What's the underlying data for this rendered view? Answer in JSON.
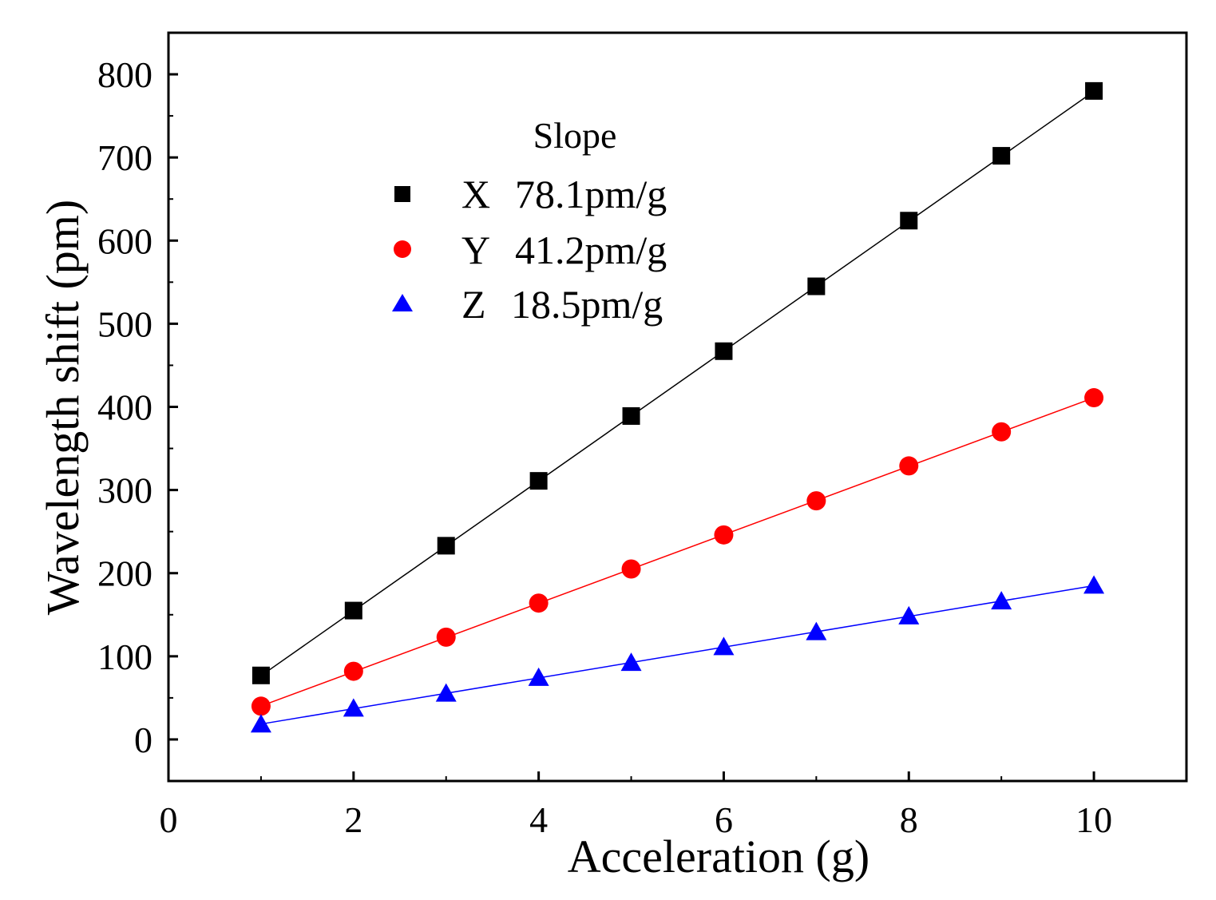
{
  "chart_data": {
    "type": "scatter",
    "xlabel": "Acceleration (g)",
    "ylabel": "Wavelength shift (pm)",
    "xlim": [
      0,
      11
    ],
    "ylim": [
      -50,
      850
    ],
    "x_ticks": [
      0,
      2,
      4,
      6,
      8,
      10
    ],
    "y_ticks": [
      0,
      100,
      200,
      300,
      400,
      500,
      600,
      700,
      800
    ],
    "legend": {
      "title": "Slope",
      "placement": "top-left",
      "entries": [
        {
          "axis": "X",
          "slope": "78.1pm/g"
        },
        {
          "axis": "Y",
          "slope": "41.2pm/g"
        },
        {
          "axis": "Z",
          "slope": "18.5pm/g"
        }
      ]
    },
    "series": [
      {
        "name": "X",
        "marker": "square",
        "color": "#000000",
        "line_color": "#000000",
        "x": [
          1,
          2,
          3,
          4,
          5,
          6,
          7,
          8,
          9,
          10
        ],
        "y": [
          77,
          155,
          233,
          311,
          389,
          467,
          545,
          624,
          702,
          780
        ],
        "fit": {
          "slope": 78.1,
          "intercept": -1.5
        }
      },
      {
        "name": "Y",
        "marker": "circle",
        "color": "#ff0000",
        "line_color": "#ff0000",
        "x": [
          1,
          2,
          3,
          4,
          5,
          6,
          7,
          8,
          9,
          10
        ],
        "y": [
          40,
          82,
          123,
          164,
          205,
          246,
          287,
          329,
          370,
          411
        ],
        "fit": {
          "slope": 41.2,
          "intercept": -1
        }
      },
      {
        "name": "Z",
        "marker": "triangle",
        "color": "#0000ff",
        "line_color": "#0000ff",
        "x": [
          1,
          2,
          3,
          4,
          5,
          6,
          7,
          8,
          9,
          10
        ],
        "y": [
          18,
          37,
          55,
          74,
          92,
          111,
          129,
          148,
          166,
          185
        ],
        "fit": {
          "slope": 18.5,
          "intercept": 0
        }
      }
    ]
  }
}
